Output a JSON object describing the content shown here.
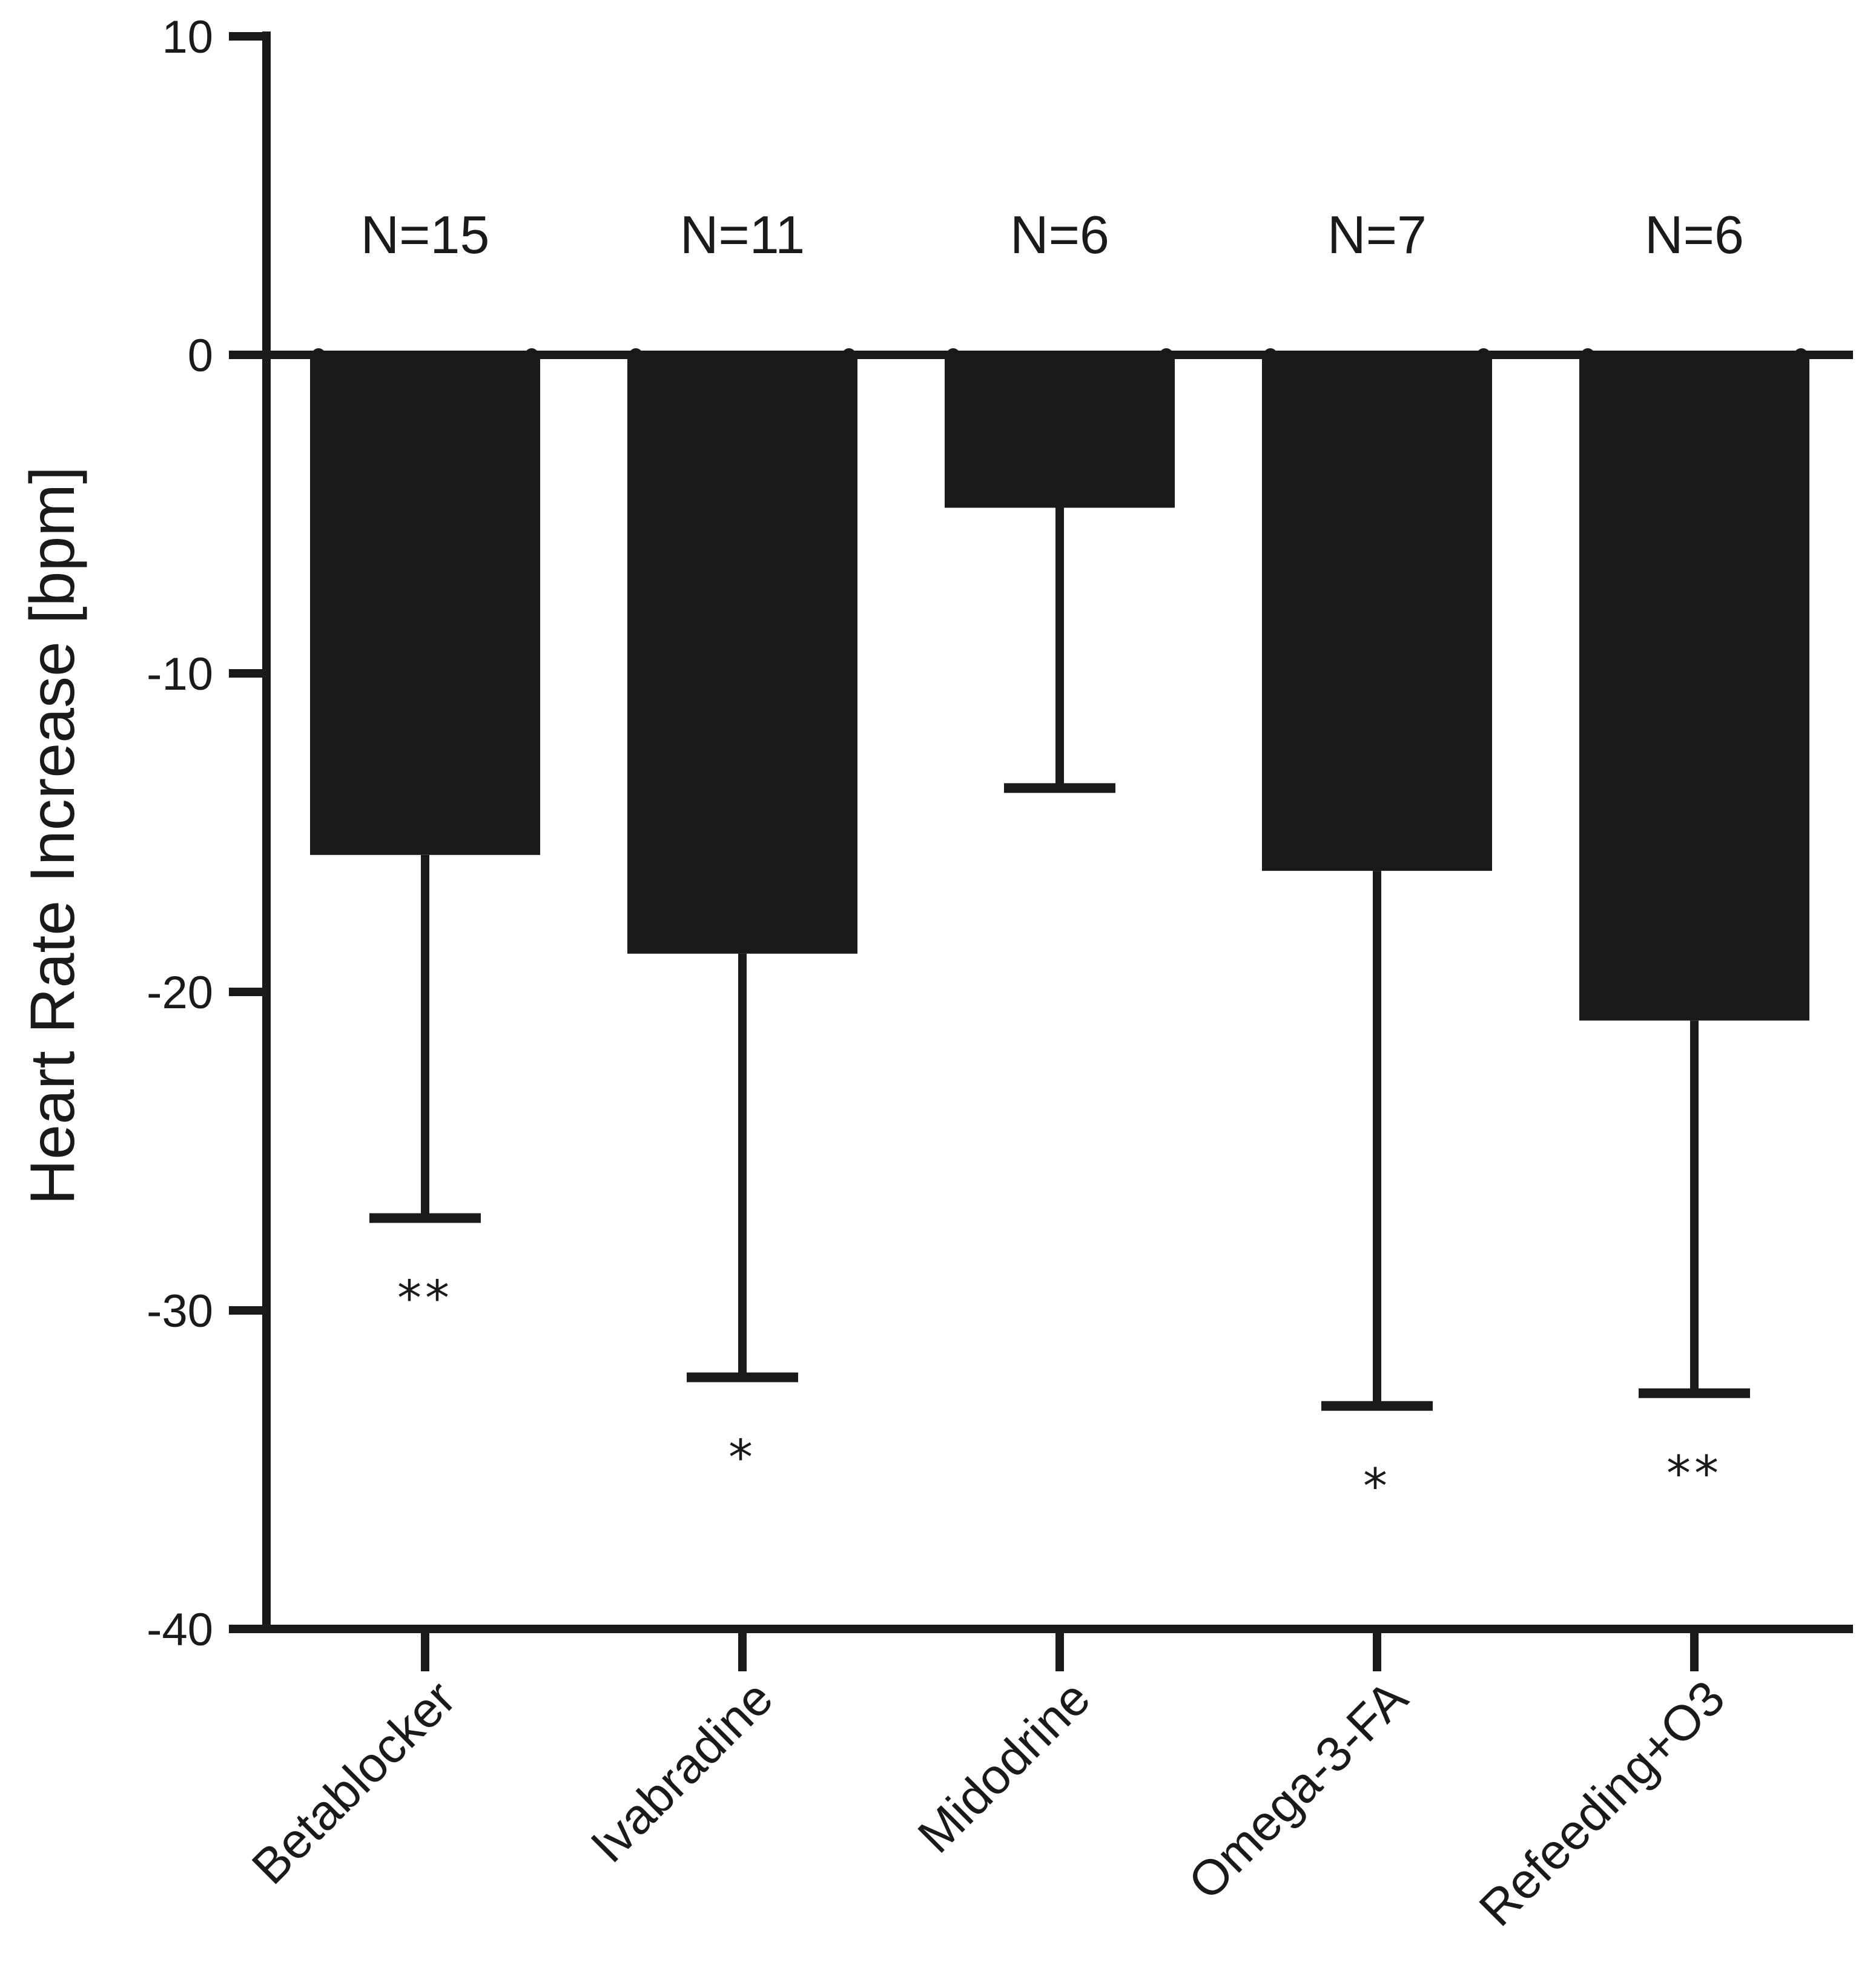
{
  "chart_data": {
    "type": "bar",
    "title": "",
    "xlabel": "",
    "ylabel": "Heart Rate Increase [bpm]",
    "ylim": [
      -40,
      10
    ],
    "yticks": [
      10,
      0,
      -10,
      -20,
      -30,
      -40
    ],
    "categories": [
      "Betablocker",
      "Ivabradine",
      "Midodrine",
      "Omega-3-FA",
      "Refeeding+O3"
    ],
    "values": [
      -15.7,
      -18.8,
      -4.8,
      -16.2,
      -20.9
    ],
    "error_low": [
      -27.1,
      -32.1,
      -13.6,
      -33.0,
      -32.6
    ],
    "n_labels": [
      "N=15",
      "N=11",
      "N=6",
      "N=7",
      "N=6"
    ],
    "significance": [
      "**",
      "*",
      "",
      "*",
      "**"
    ],
    "bar_color": "#1a1a1a",
    "grid": false,
    "legend": "none"
  }
}
